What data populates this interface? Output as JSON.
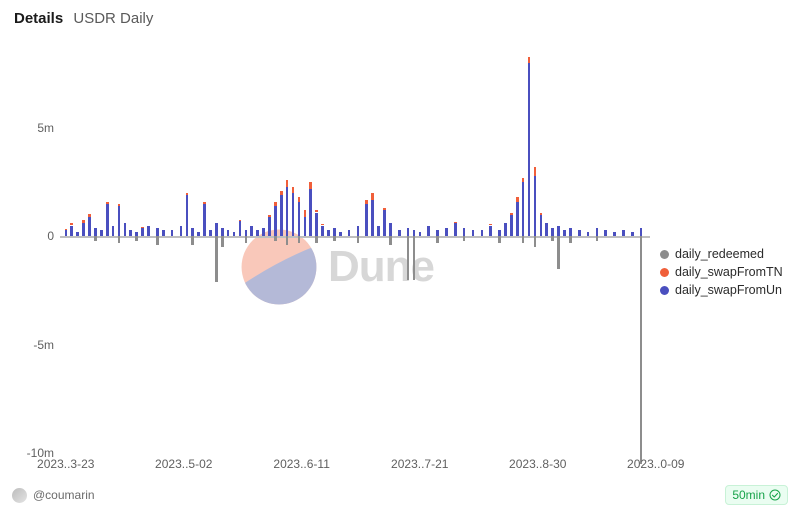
{
  "header": {
    "bold": "Details",
    "sub": "USDR Daily"
  },
  "author": "@coumarin",
  "refresh": "50min",
  "watermark_text": "Dune",
  "legend": [
    {
      "label": "daily_redeemed",
      "color": "#8d8d8d"
    },
    {
      "label": "daily_swapFromTN",
      "color": "#f05f3a"
    },
    {
      "label": "daily_swapFromUn",
      "color": "#4a4fbf"
    }
  ],
  "yaxis": {
    "min": -10,
    "max": 8,
    "ticks": [
      {
        "v": 5,
        "label": "5m"
      },
      {
        "v": 0,
        "label": "0"
      },
      {
        "v": -5,
        "label": "-5m"
      },
      {
        "v": -10,
        "label": "-10m"
      }
    ]
  },
  "xaxis": {
    "labels": [
      "2023..3-23",
      "2023..5-02",
      "2023..6-11",
      "2023..7-21",
      "2023..8-30",
      "2023..0-09"
    ]
  },
  "chart": {
    "n": 200,
    "colors": {
      "redeemed": "#8d8d8d",
      "fromTN": "#f05f3a",
      "fromUn": "#4a4fbf"
    },
    "background": "#ffffff",
    "bars": [
      {
        "i": 2,
        "un": 0.3,
        "tn": 0.05,
        "rd": 0
      },
      {
        "i": 4,
        "un": 0.5,
        "tn": 0.1,
        "rd": 0
      },
      {
        "i": 6,
        "un": 0.2,
        "tn": 0,
        "rd": 0
      },
      {
        "i": 8,
        "un": 0.6,
        "tn": 0.15,
        "rd": 0
      },
      {
        "i": 10,
        "un": 0.9,
        "tn": 0.15,
        "rd": 0
      },
      {
        "i": 12,
        "un": 0.4,
        "tn": 0,
        "rd": -0.2
      },
      {
        "i": 14,
        "un": 0.3,
        "tn": 0,
        "rd": 0
      },
      {
        "i": 16,
        "un": 1.5,
        "tn": 0.1,
        "rd": 0
      },
      {
        "i": 18,
        "un": 0.5,
        "tn": 0,
        "rd": 0
      },
      {
        "i": 20,
        "un": 1.4,
        "tn": 0.1,
        "rd": -0.3
      },
      {
        "i": 22,
        "un": 0.6,
        "tn": 0,
        "rd": 0
      },
      {
        "i": 24,
        "un": 0.3,
        "tn": 0,
        "rd": 0
      },
      {
        "i": 26,
        "un": 0.2,
        "tn": 0,
        "rd": -0.2
      },
      {
        "i": 28,
        "un": 0.4,
        "tn": 0.05,
        "rd": 0
      },
      {
        "i": 30,
        "un": 0.5,
        "tn": 0,
        "rd": 0
      },
      {
        "i": 33,
        "un": 0.4,
        "tn": 0,
        "rd": -0.4
      },
      {
        "i": 35,
        "un": 0.3,
        "tn": 0,
        "rd": 0
      },
      {
        "i": 38,
        "un": 0.3,
        "tn": 0,
        "rd": 0
      },
      {
        "i": 41,
        "un": 0.5,
        "tn": 0,
        "rd": 0
      },
      {
        "i": 43,
        "un": 1.9,
        "tn": 0.1,
        "rd": 0
      },
      {
        "i": 45,
        "un": 0.4,
        "tn": 0,
        "rd": -0.4
      },
      {
        "i": 47,
        "un": 0.2,
        "tn": 0,
        "rd": 0
      },
      {
        "i": 49,
        "un": 1.5,
        "tn": 0.1,
        "rd": 0
      },
      {
        "i": 51,
        "un": 0.3,
        "tn": 0,
        "rd": 0
      },
      {
        "i": 53,
        "un": 0.6,
        "tn": 0,
        "rd": -2.1
      },
      {
        "i": 55,
        "un": 0.4,
        "tn": 0,
        "rd": -0.5
      },
      {
        "i": 57,
        "un": 0.3,
        "tn": 0,
        "rd": 0
      },
      {
        "i": 59,
        "un": 0.2,
        "tn": 0,
        "rd": 0
      },
      {
        "i": 61,
        "un": 0.7,
        "tn": 0.05,
        "rd": 0
      },
      {
        "i": 63,
        "un": 0.3,
        "tn": 0,
        "rd": -0.3
      },
      {
        "i": 65,
        "un": 0.5,
        "tn": 0,
        "rd": 0
      },
      {
        "i": 67,
        "un": 0.3,
        "tn": 0,
        "rd": 0
      },
      {
        "i": 69,
        "un": 0.4,
        "tn": 0,
        "rd": 0
      },
      {
        "i": 71,
        "un": 0.9,
        "tn": 0.1,
        "rd": 0
      },
      {
        "i": 73,
        "un": 1.4,
        "tn": 0.2,
        "rd": -0.2
      },
      {
        "i": 75,
        "un": 1.9,
        "tn": 0.2,
        "rd": 0
      },
      {
        "i": 77,
        "un": 2.3,
        "tn": 0.3,
        "rd": -0.4
      },
      {
        "i": 79,
        "un": 2.0,
        "tn": 0.3,
        "rd": 0
      },
      {
        "i": 81,
        "un": 1.6,
        "tn": 0.2,
        "rd": -0.3
      },
      {
        "i": 83,
        "un": 0.9,
        "tn": 0.3,
        "rd": 0
      },
      {
        "i": 85,
        "un": 2.2,
        "tn": 0.3,
        "rd": 0
      },
      {
        "i": 87,
        "un": 1.1,
        "tn": 0.1,
        "rd": -0.3
      },
      {
        "i": 89,
        "un": 0.5,
        "tn": 0.05,
        "rd": 0
      },
      {
        "i": 91,
        "un": 0.3,
        "tn": 0,
        "rd": 0
      },
      {
        "i": 93,
        "un": 0.4,
        "tn": 0,
        "rd": -0.2
      },
      {
        "i": 95,
        "un": 0.2,
        "tn": 0,
        "rd": 0
      },
      {
        "i": 98,
        "un": 0.3,
        "tn": 0,
        "rd": 0
      },
      {
        "i": 101,
        "un": 0.5,
        "tn": 0,
        "rd": -0.3
      },
      {
        "i": 104,
        "un": 1.5,
        "tn": 0.2,
        "rd": 0
      },
      {
        "i": 106,
        "un": 1.7,
        "tn": 0.3,
        "rd": 0
      },
      {
        "i": 108,
        "un": 0.5,
        "tn": 0,
        "rd": 0
      },
      {
        "i": 110,
        "un": 1.2,
        "tn": 0.1,
        "rd": 0
      },
      {
        "i": 112,
        "un": 0.6,
        "tn": 0,
        "rd": -0.4
      },
      {
        "i": 115,
        "un": 0.3,
        "tn": 0,
        "rd": 0
      },
      {
        "i": 118,
        "un": 0.4,
        "tn": 0,
        "rd": -2.0
      },
      {
        "i": 120,
        "un": 0.3,
        "tn": 0,
        "rd": -2.0
      },
      {
        "i": 122,
        "un": 0.2,
        "tn": 0,
        "rd": 0
      },
      {
        "i": 125,
        "un": 0.5,
        "tn": 0,
        "rd": 0
      },
      {
        "i": 128,
        "un": 0.3,
        "tn": 0,
        "rd": -0.3
      },
      {
        "i": 131,
        "un": 0.4,
        "tn": 0,
        "rd": 0
      },
      {
        "i": 134,
        "un": 0.6,
        "tn": 0.05,
        "rd": 0
      },
      {
        "i": 137,
        "un": 0.4,
        "tn": 0,
        "rd": -0.2
      },
      {
        "i": 140,
        "un": 0.3,
        "tn": 0,
        "rd": 0
      },
      {
        "i": 143,
        "un": 0.3,
        "tn": 0,
        "rd": 0
      },
      {
        "i": 146,
        "un": 0.5,
        "tn": 0.05,
        "rd": 0
      },
      {
        "i": 149,
        "un": 0.3,
        "tn": 0,
        "rd": -0.3
      },
      {
        "i": 151,
        "un": 0.6,
        "tn": 0,
        "rd": 0
      },
      {
        "i": 153,
        "un": 1.0,
        "tn": 0.1,
        "rd": 0
      },
      {
        "i": 155,
        "un": 1.6,
        "tn": 0.2,
        "rd": 0
      },
      {
        "i": 157,
        "un": 2.5,
        "tn": 0.2,
        "rd": -0.3
      },
      {
        "i": 159,
        "un": 8.0,
        "tn": 0.3,
        "rd": 0
      },
      {
        "i": 161,
        "un": 2.8,
        "tn": 0.4,
        "rd": -0.5
      },
      {
        "i": 163,
        "un": 1.0,
        "tn": 0.1,
        "rd": 0
      },
      {
        "i": 165,
        "un": 0.6,
        "tn": 0,
        "rd": 0
      },
      {
        "i": 167,
        "un": 0.4,
        "tn": 0,
        "rd": -0.2
      },
      {
        "i": 169,
        "un": 0.5,
        "tn": 0,
        "rd": -1.5
      },
      {
        "i": 171,
        "un": 0.3,
        "tn": 0,
        "rd": 0
      },
      {
        "i": 173,
        "un": 0.4,
        "tn": 0,
        "rd": -0.3
      },
      {
        "i": 176,
        "un": 0.3,
        "tn": 0,
        "rd": 0
      },
      {
        "i": 179,
        "un": 0.2,
        "tn": 0,
        "rd": 0
      },
      {
        "i": 182,
        "un": 0.4,
        "tn": 0,
        "rd": -0.2
      },
      {
        "i": 185,
        "un": 0.3,
        "tn": 0,
        "rd": 0
      },
      {
        "i": 188,
        "un": 0.2,
        "tn": 0,
        "rd": 0
      },
      {
        "i": 191,
        "un": 0.3,
        "tn": 0,
        "rd": 0
      },
      {
        "i": 194,
        "un": 0.2,
        "tn": 0,
        "rd": 0
      },
      {
        "i": 197,
        "un": 0.4,
        "tn": 0,
        "rd": -10.5
      }
    ]
  }
}
